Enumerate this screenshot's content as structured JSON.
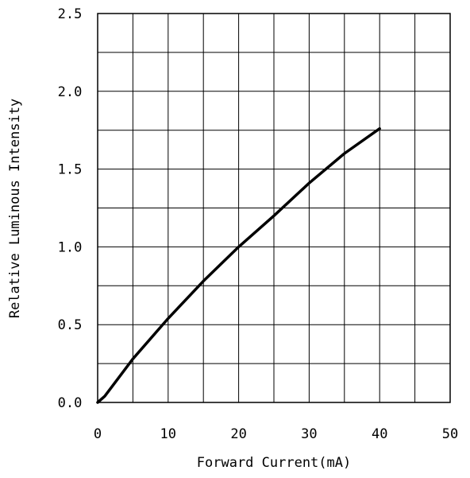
{
  "chart_data": {
    "type": "line",
    "title": "",
    "xlabel": "Forward Current(mA)",
    "ylabel": "Relative Luminous Intensity",
    "xlim": [
      0,
      50
    ],
    "ylim": [
      0.0,
      2.5
    ],
    "x_ticks": [
      "0",
      "10",
      "20",
      "30",
      "40",
      "50"
    ],
    "y_ticks": [
      "0.0",
      "0.5",
      "1.0",
      "1.5",
      "2.0",
      "2.5"
    ],
    "grid": true,
    "legend": "none",
    "series": [
      {
        "x": [
          0,
          1,
          2,
          5,
          10,
          15,
          20,
          25,
          30,
          35,
          40
        ],
        "y": [
          0.0,
          0.04,
          0.1,
          0.28,
          0.54,
          0.78,
          1.0,
          1.2,
          1.41,
          1.6,
          1.76
        ],
        "color": "#000000"
      }
    ]
  }
}
